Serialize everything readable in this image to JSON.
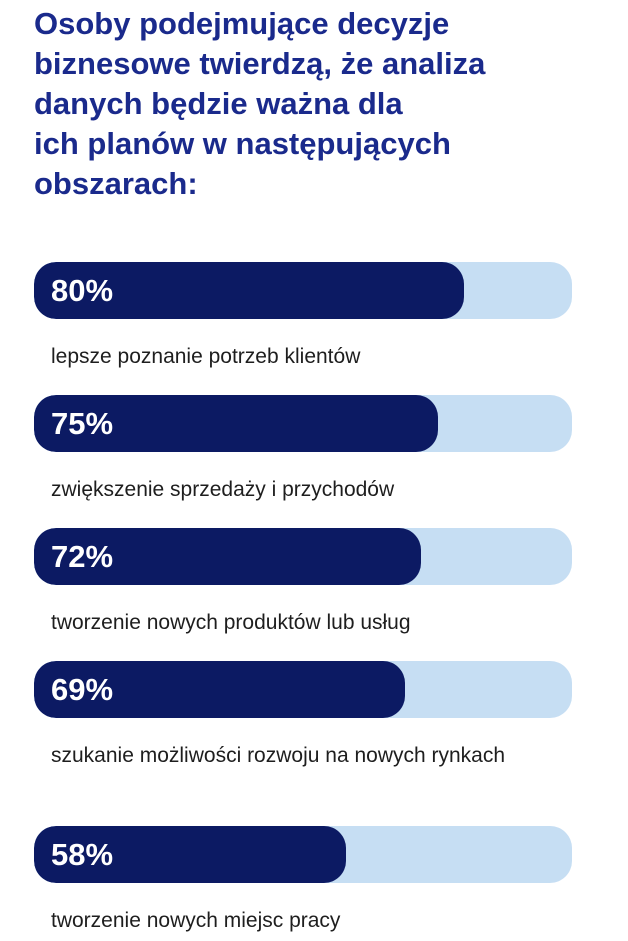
{
  "chart_data": {
    "type": "bar",
    "orientation": "horizontal",
    "title": "Osoby podejmujące decyzje\nbiznesowe twierdzą, że analiza\ndanych będzie ważna dla\nich planów w następujących\nobszarach:",
    "categories": [
      "lepsze poznanie potrzeb klientów",
      "zwiększenie sprzedaży i przychodów",
      "tworzenie nowych produktów lub usług",
      "szukanie możliwości rozwoju na nowych rynkach",
      "tworzenie nowych miejsc pracy"
    ],
    "values": [
      80,
      75,
      72,
      69,
      58
    ],
    "value_labels": [
      "80%",
      "75%",
      "72%",
      "69%",
      "58%"
    ],
    "xlim": [
      0,
      100
    ],
    "legend": "none",
    "grid": false,
    "colors": {
      "title": "#1a2a8c",
      "bar": "#0c1a63",
      "track": "#c6def3",
      "value_text": "#ffffff",
      "label_text": "#1e1e1e"
    }
  }
}
